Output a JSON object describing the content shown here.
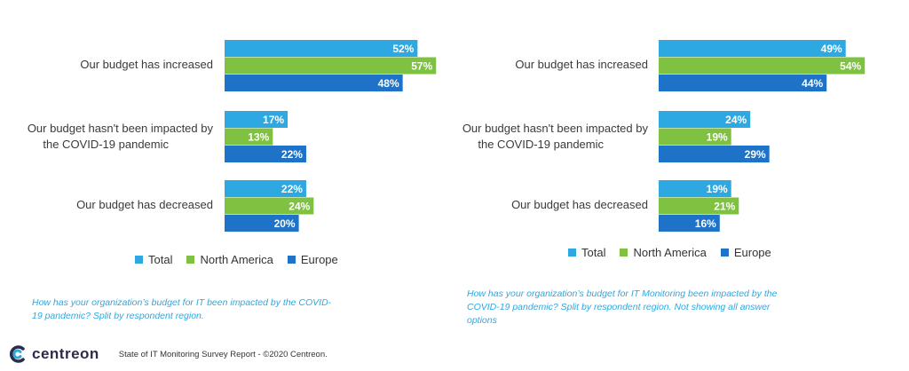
{
  "colors": {
    "Total": "#2ea8e0",
    "North America": "#7fc241",
    "Europe": "#1e72c8",
    "caption": "#2ea8e0"
  },
  "chart_data": [
    {
      "type": "bar",
      "orientation": "horizontal",
      "categories": [
        "Our budget has increased",
        "Our budget hasn't been impacted by the COVID-19 pandemic",
        "Our budget has decreased"
      ],
      "series": [
        {
          "name": "Total",
          "values": [
            52,
            17,
            22
          ]
        },
        {
          "name": "North America",
          "values": [
            57,
            13,
            24
          ]
        },
        {
          "name": "Europe",
          "values": [
            48,
            22,
            20
          ]
        }
      ],
      "value_suffix": "%",
      "legend": "bottom",
      "grid": false,
      "caption": "How has your organization’s budget for IT been impacted by the COVID-19 pandemic? Split by respondent region."
    },
    {
      "type": "bar",
      "orientation": "horizontal",
      "categories": [
        "Our budget has increased",
        "Our budget hasn't been impacted by the COVID-19 pandemic",
        "Our budget has decreased"
      ],
      "series": [
        {
          "name": "Total",
          "values": [
            49,
            24,
            19
          ]
        },
        {
          "name": "North America",
          "values": [
            54,
            19,
            21
          ]
        },
        {
          "name": "Europe",
          "values": [
            44,
            29,
            16
          ]
        }
      ],
      "value_suffix": "%",
      "legend": "bottom",
      "grid": false,
      "caption": "How has your organization’s budget for IT Monitoring been impacted by the COVID-19 pandemic? Split by respondent region. Not showing all answer options"
    }
  ],
  "labels": {
    "left": {
      "cat0": "Our budget has increased",
      "cat1a": "Our budget hasn't been impacted by",
      "cat1b": "the COVID-19 pandemic",
      "cat2": "Our budget has decreased"
    },
    "right": {
      "cat0": "Our budget has increased",
      "cat1a": "Our budget hasn't been impacted by",
      "cat1b": "the COVID-19 pandemic",
      "cat2": "Our budget has decreased"
    }
  },
  "legend_labels": {
    "total": "Total",
    "na": "North America",
    "eu": "Europe"
  },
  "captions": {
    "left_1": "How has your organization’s budget for IT been impacted by the COVID-",
    "left_2": "19 pandemic? Split by respondent region.",
    "right_1": "How has your organization’s budget for IT Monitoring been impacted by the",
    "right_2": "COVID-19 pandemic? Split by respondent region. Not showing all answer",
    "right_3": "options"
  },
  "footer": {
    "brand": "centreon",
    "text": "State of IT Monitoring Survey Report - ©2020 Centreon."
  }
}
